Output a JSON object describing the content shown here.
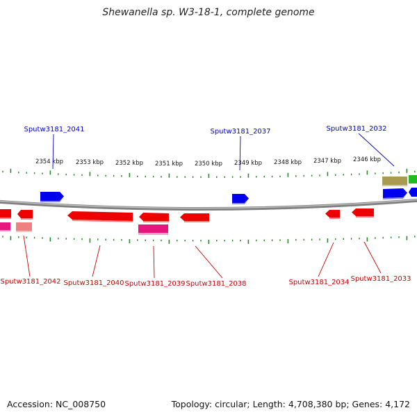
{
  "title": "Shewanella sp. W3-18-1, complete genome",
  "footer": {
    "accession": "Accession: NC_008750",
    "summary": "Topology: circular; Length: 4,708,380 bp; Genes: 4,172"
  },
  "scale_labels": [
    "2354 kbp",
    "2353 kbp",
    "2352 kbp",
    "2351 kbp",
    "2350 kbp",
    "2349 kbp",
    "2348 kbp",
    "2347 kbp",
    "2346 kbp"
  ],
  "colors": {
    "forward_gene": "#0000ee",
    "reverse_gene": "#ee0000",
    "pink": "#e8157f",
    "light_red": "#f08080",
    "olive": "#a89a50",
    "green": "#22bb22",
    "tick": "#228b22",
    "backbone": "#808080"
  },
  "gene_labels_top": [
    "Sputw3181_2041",
    "Sputw3181_2037",
    "Sputw3181_2032"
  ],
  "gene_labels_bottom": [
    "Sputw3181_2042",
    "Sputw3181_2040",
    "Sputw3181_2039",
    "Sputw3181_2038",
    "Sputw3181_2034",
    "Sputw3181_2033"
  ]
}
